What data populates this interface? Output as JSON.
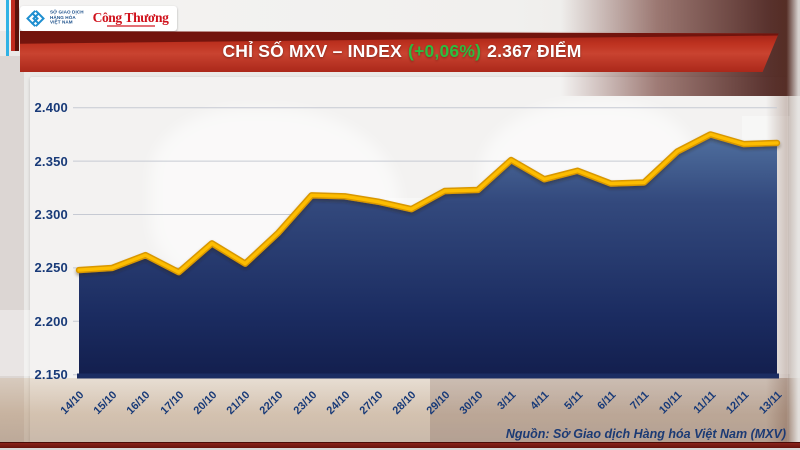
{
  "header": {
    "logo": {
      "mxv_name_lines": [
        "SỞ GIAO DỊCH",
        "HÀNG HÓA",
        "VIỆT NAM"
      ],
      "newspaper": "Công Thương"
    },
    "banner": {
      "title": "CHỈ SỐ MXV – INDEX",
      "change": "(+0,06%)",
      "value": "2.367 ĐIỂM"
    }
  },
  "chart_data": {
    "type": "area",
    "title": "CHỈ SỐ MXV – INDEX (+0,06%) 2.367 ĐIỂM",
    "categories": [
      "14/10",
      "15/10",
      "16/10",
      "17/10",
      "20/10",
      "21/10",
      "22/10",
      "23/10",
      "24/10",
      "27/10",
      "28/10",
      "29/10",
      "30/10",
      "3/11",
      "4/11",
      "5/11",
      "6/11",
      "7/11",
      "10/11",
      "11/11",
      "12/11",
      "13/11"
    ],
    "values": [
      2248,
      2250,
      2262,
      2246,
      2273,
      2254,
      2283,
      2318,
      2317,
      2312,
      2305,
      2322,
      2323,
      2351,
      2333,
      2341,
      2329,
      2330,
      2359,
      2375,
      2366,
      2367
    ],
    "ylim": [
      2150,
      2400
    ],
    "y_ticks": [
      {
        "value": 2400,
        "label": "2.400"
      },
      {
        "value": 2350,
        "label": "2.350"
      },
      {
        "value": 2300,
        "label": "2.300"
      },
      {
        "value": 2250,
        "label": "2.250"
      },
      {
        "value": 2200,
        "label": "2.200"
      },
      {
        "value": 2150,
        "label": "2.150"
      }
    ],
    "xlabel": "",
    "ylabel": "",
    "grid": true,
    "legend": false,
    "x_label_rotation": -45,
    "line_color": "#fdbd01",
    "line_edge_color": "#d89704",
    "area_top_color": "#50709f",
    "area_bottom_color": "#131f4e",
    "axis_color": "#1b2d62",
    "grid_color": "#c6cad3",
    "label_color": "#183a78"
  },
  "footer": {
    "source": "Nguồn: Sở Giao dịch Hàng hóa Việt Nam (MXV)"
  }
}
